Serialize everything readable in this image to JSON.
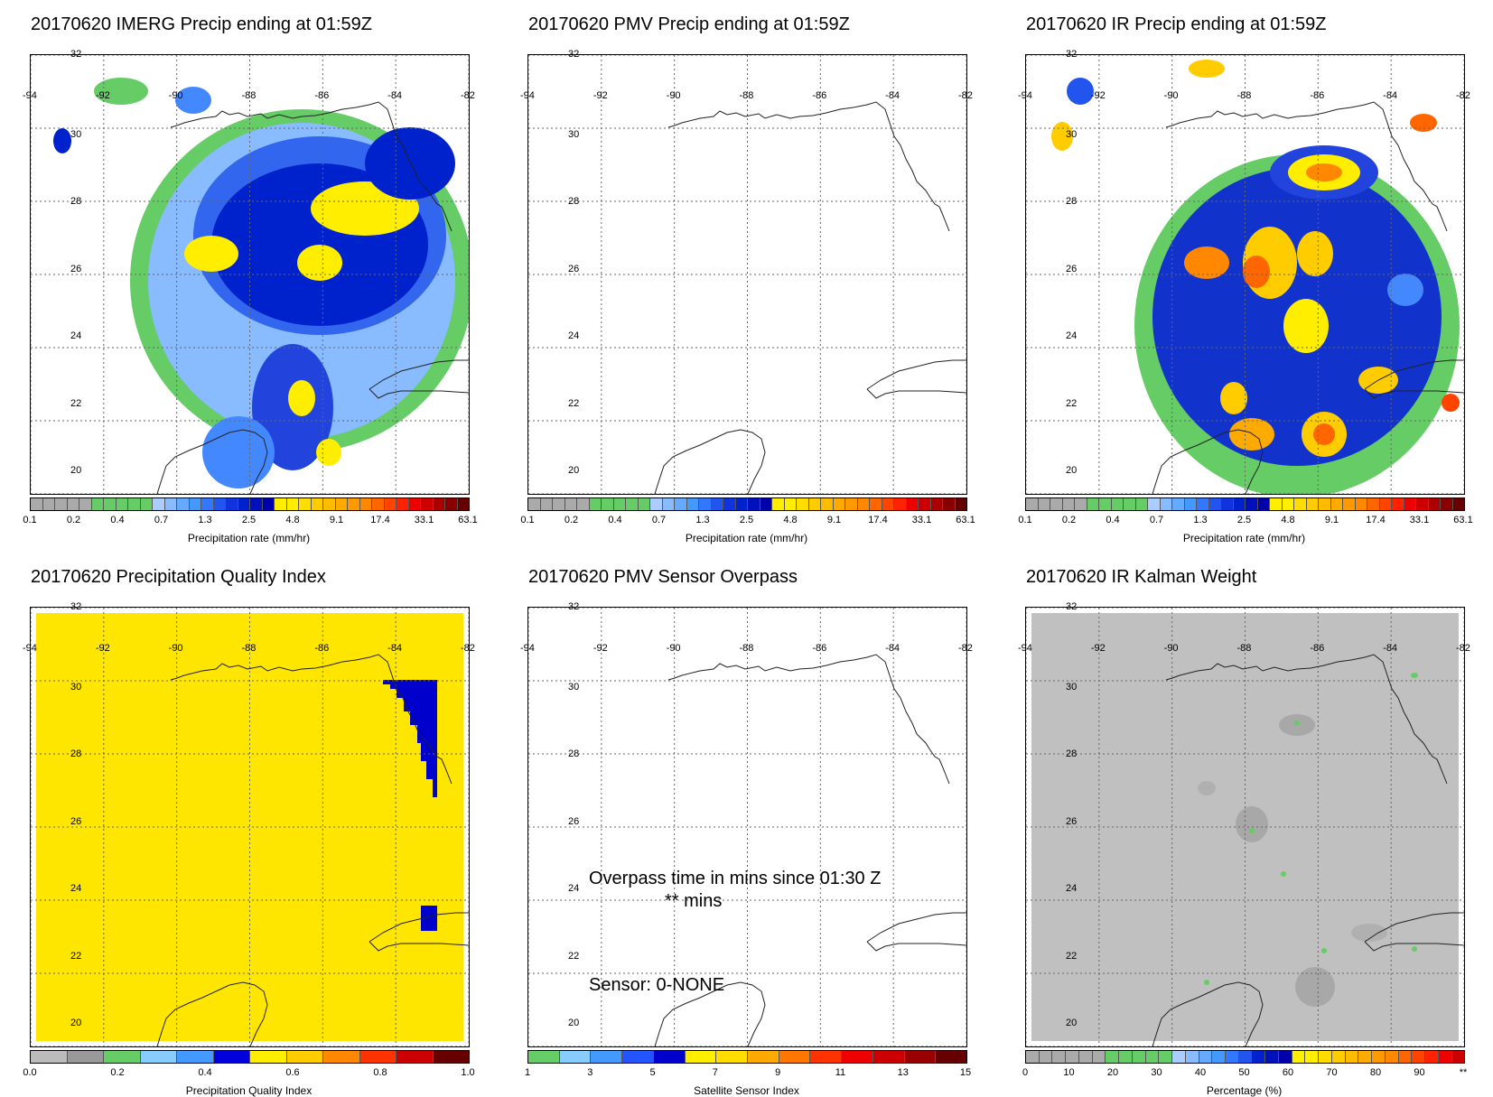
{
  "panels": [
    {
      "id": "imerg",
      "title": "20170620 IMERG Precip ending at 01:59Z",
      "cbar_label": "Precipitation rate (mm/hr)"
    },
    {
      "id": "pmv",
      "title": "20170620 PMV Precip ending at 01:59Z",
      "cbar_label": "Precipitation rate (mm/hr)"
    },
    {
      "id": "ir",
      "title": "20170620 IR Precip ending at 01:59Z",
      "cbar_label": "Precipitation rate (mm/hr)"
    },
    {
      "id": "pqi",
      "title": "20170620 Precipitation Quality Index",
      "cbar_label": "Precipitation Quality Index"
    },
    {
      "id": "overpass",
      "title": "20170620 PMV Sensor Overpass",
      "cbar_label": "Satellite Sensor Index"
    },
    {
      "id": "kalman",
      "title": "20170620 IR Kalman Weight",
      "cbar_label": "Percentage (%)"
    }
  ],
  "lon_labels": [
    "-94",
    "-92",
    "-90",
    "-88",
    "-86",
    "-84",
    "-82"
  ],
  "lat_labels": [
    "32",
    "30",
    "28",
    "26",
    "24",
    "22",
    "20"
  ],
  "precip_ticks": [
    "0.1",
    "0.2",
    "0.4",
    "0.7",
    "1.3",
    "2.5",
    "4.8",
    "9.1",
    "17.4",
    "33.1",
    "63.1"
  ],
  "pqi_ticks": [
    "0.0",
    "0.2",
    "0.4",
    "0.6",
    "0.8",
    "1.0"
  ],
  "sensor_ticks": [
    "1",
    "3",
    "5",
    "7",
    "9",
    "11",
    "13",
    "15"
  ],
  "pct_ticks": [
    "0",
    "10",
    "20",
    "30",
    "40",
    "50",
    "60",
    "70",
    "80",
    "90",
    "**"
  ],
  "overpass_text": {
    "line1": "Overpass time in mins since 01:30 Z",
    "line2": "** mins",
    "sensor": "Sensor:   0-NONE"
  },
  "colors": {
    "precip": [
      "#aaaaaa",
      "#aaaaaa",
      "#aaaaaa",
      "#aaaaaa",
      "#aaaaaa",
      "#66cc66",
      "#66cc66",
      "#66cc66",
      "#66cc66",
      "#66cc66",
      "#aaccff",
      "#88bbff",
      "#66aaff",
      "#4499ff",
      "#3377ff",
      "#2255ee",
      "#1133dd",
      "#0022cc",
      "#0011bb",
      "#0000aa",
      "#ffee00",
      "#ffee00",
      "#ffdd00",
      "#ffcc00",
      "#ffbb00",
      "#ffaa00",
      "#ff9900",
      "#ff8800",
      "#ff6600",
      "#ff4400",
      "#ff2200",
      "#ee0000",
      "#cc0000",
      "#aa0000",
      "#880000",
      "#660000"
    ],
    "pqi": [
      "#bbbbbb",
      "#999999",
      "#66cc66",
      "#88ccff",
      "#4499ff",
      "#0000dd",
      "#ffee00",
      "#ffcc00",
      "#ff8800",
      "#ff3300",
      "#cc0000",
      "#660000"
    ],
    "sensor": [
      "#66cc66",
      "#88ccff",
      "#4499ff",
      "#2255ff",
      "#0000cc",
      "#ffee00",
      "#ffdd00",
      "#ffaa00",
      "#ff7700",
      "#ff3300",
      "#ee0000",
      "#cc0000",
      "#990000",
      "#660000"
    ],
    "pct": [
      "#aaaaaa",
      "#aaaaaa",
      "#aaaaaa",
      "#aaaaaa",
      "#aaaaaa",
      "#aaaaaa",
      "#66cc66",
      "#66cc66",
      "#66cc66",
      "#66cc66",
      "#66cc66",
      "#aaccff",
      "#88bbff",
      "#66aaff",
      "#4499ff",
      "#3377ff",
      "#2255ee",
      "#0022cc",
      "#0011bb",
      "#0000aa",
      "#ffee00",
      "#ffee00",
      "#ffdd00",
      "#ffcc00",
      "#ffbb00",
      "#ffaa00",
      "#ff9900",
      "#ff8800",
      "#ff6600",
      "#ff4400",
      "#ff2200",
      "#ee0000",
      "#cc0000"
    ],
    "pqi_fill": "#ffe600",
    "pqi_blue": "#0000cc",
    "kalman_fill": "#c0c0c0"
  }
}
